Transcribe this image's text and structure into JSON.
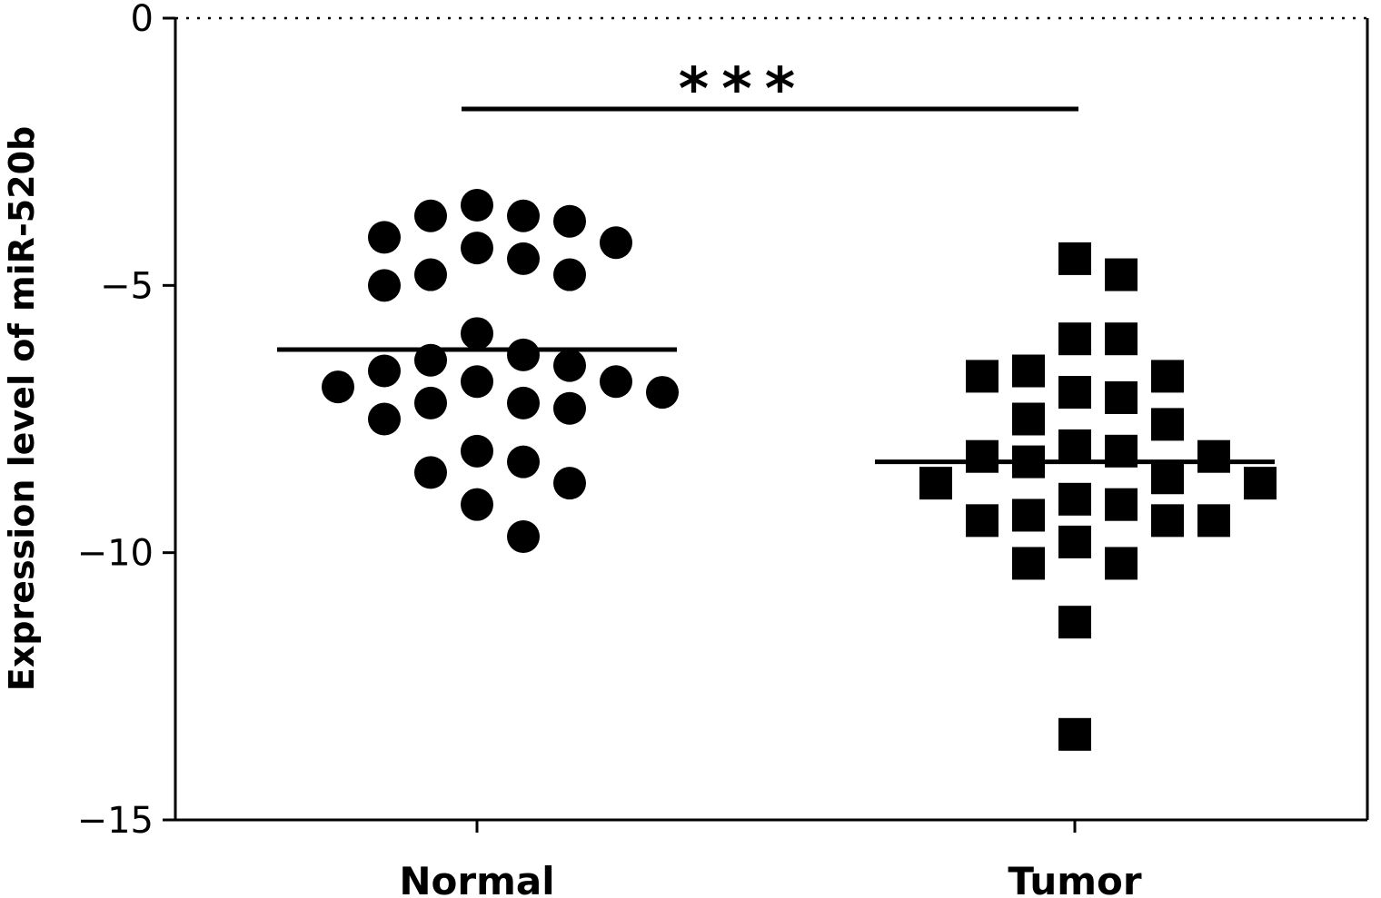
{
  "chart_data": {
    "type": "scatter",
    "ylabel": "Expression level of miR-520b",
    "xlabel": "",
    "ylim": [
      -15,
      0
    ],
    "yticks": [
      0,
      -5,
      -10,
      -15
    ],
    "ytick_labels": [
      "0",
      "−5",
      "−10",
      "−15"
    ],
    "categories": [
      "Normal",
      "Tumor"
    ],
    "reference_line_y": 0,
    "significance": "***",
    "series": [
      {
        "category": "Normal",
        "marker": "circle",
        "mean": -6.2,
        "values": [
          -3.5,
          -3.7,
          -3.8,
          -3.7,
          -4.1,
          -4.3,
          -4.2,
          -4.5,
          -4.8,
          -5.0,
          -4.8,
          -5.9,
          -6.4,
          -6.5,
          -6.3,
          -6.6,
          -6.8,
          -7.0,
          -6.9,
          -6.8,
          -7.2,
          -7.3,
          -7.2,
          -7.5,
          -8.1,
          -8.3,
          -8.5,
          -8.7,
          -9.1,
          -9.7
        ]
      },
      {
        "category": "Tumor",
        "marker": "square",
        "mean": -8.3,
        "values": [
          -4.5,
          -4.8,
          -6.0,
          -6.0,
          -6.6,
          -6.7,
          -6.7,
          -7.0,
          -7.1,
          -7.5,
          -7.6,
          -8.0,
          -8.1,
          -8.2,
          -8.2,
          -8.3,
          -8.7,
          -8.6,
          -8.7,
          -9.0,
          -9.1,
          -9.3,
          -9.4,
          -9.4,
          -9.4,
          -9.8,
          -10.2,
          -10.2,
          -11.3,
          -13.4
        ]
      }
    ]
  }
}
